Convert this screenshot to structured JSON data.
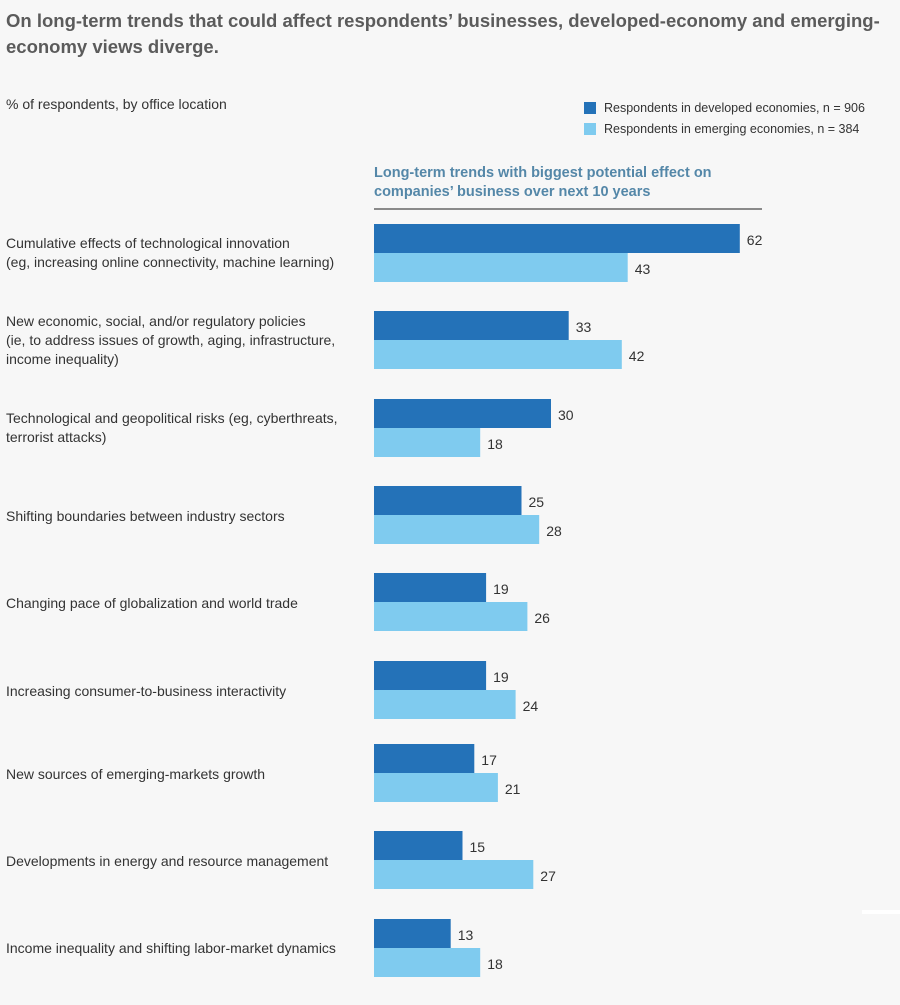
{
  "chart_data": {
    "type": "bar",
    "orientation": "horizontal",
    "title": "On long-term trends that could affect respondents’ businesses, developed-economy and emerging-economy views diverge.",
    "subtitle": "% of respondents, by office location",
    "panel_title": "Long-term trends with biggest potential effect on companies’ business over next 10 years",
    "categories": [
      "Cumulative effects of technological innovation\n(eg, increasing online connectivity, machine learning)",
      "New economic, social, and/or regulatory policies\n(ie, to address issues of growth, aging, infrastructure,\nincome inequality)",
      "Technological and geopolitical risks (eg, cyberthreats,\nterrorist attacks)",
      "Shifting boundaries between industry sectors",
      "Changing pace of globalization and world trade",
      "Increasing consumer-to-business interactivity",
      "New sources of emerging-markets growth",
      "Developments in energy and resource management",
      "Income inequality and shifting labor-market dynamics"
    ],
    "series": [
      {
        "name": "Respondents in developed economies, n = 906",
        "color": "#2472b8",
        "values": [
          62,
          33,
          30,
          25,
          19,
          19,
          17,
          15,
          13
        ]
      },
      {
        "name": "Respondents in emerging economies, n = 384",
        "color": "#7fcbef",
        "values": [
          43,
          42,
          18,
          28,
          26,
          24,
          21,
          27,
          18
        ]
      }
    ],
    "xlim": [
      0,
      62
    ],
    "legend": "top-right",
    "grid": false
  }
}
